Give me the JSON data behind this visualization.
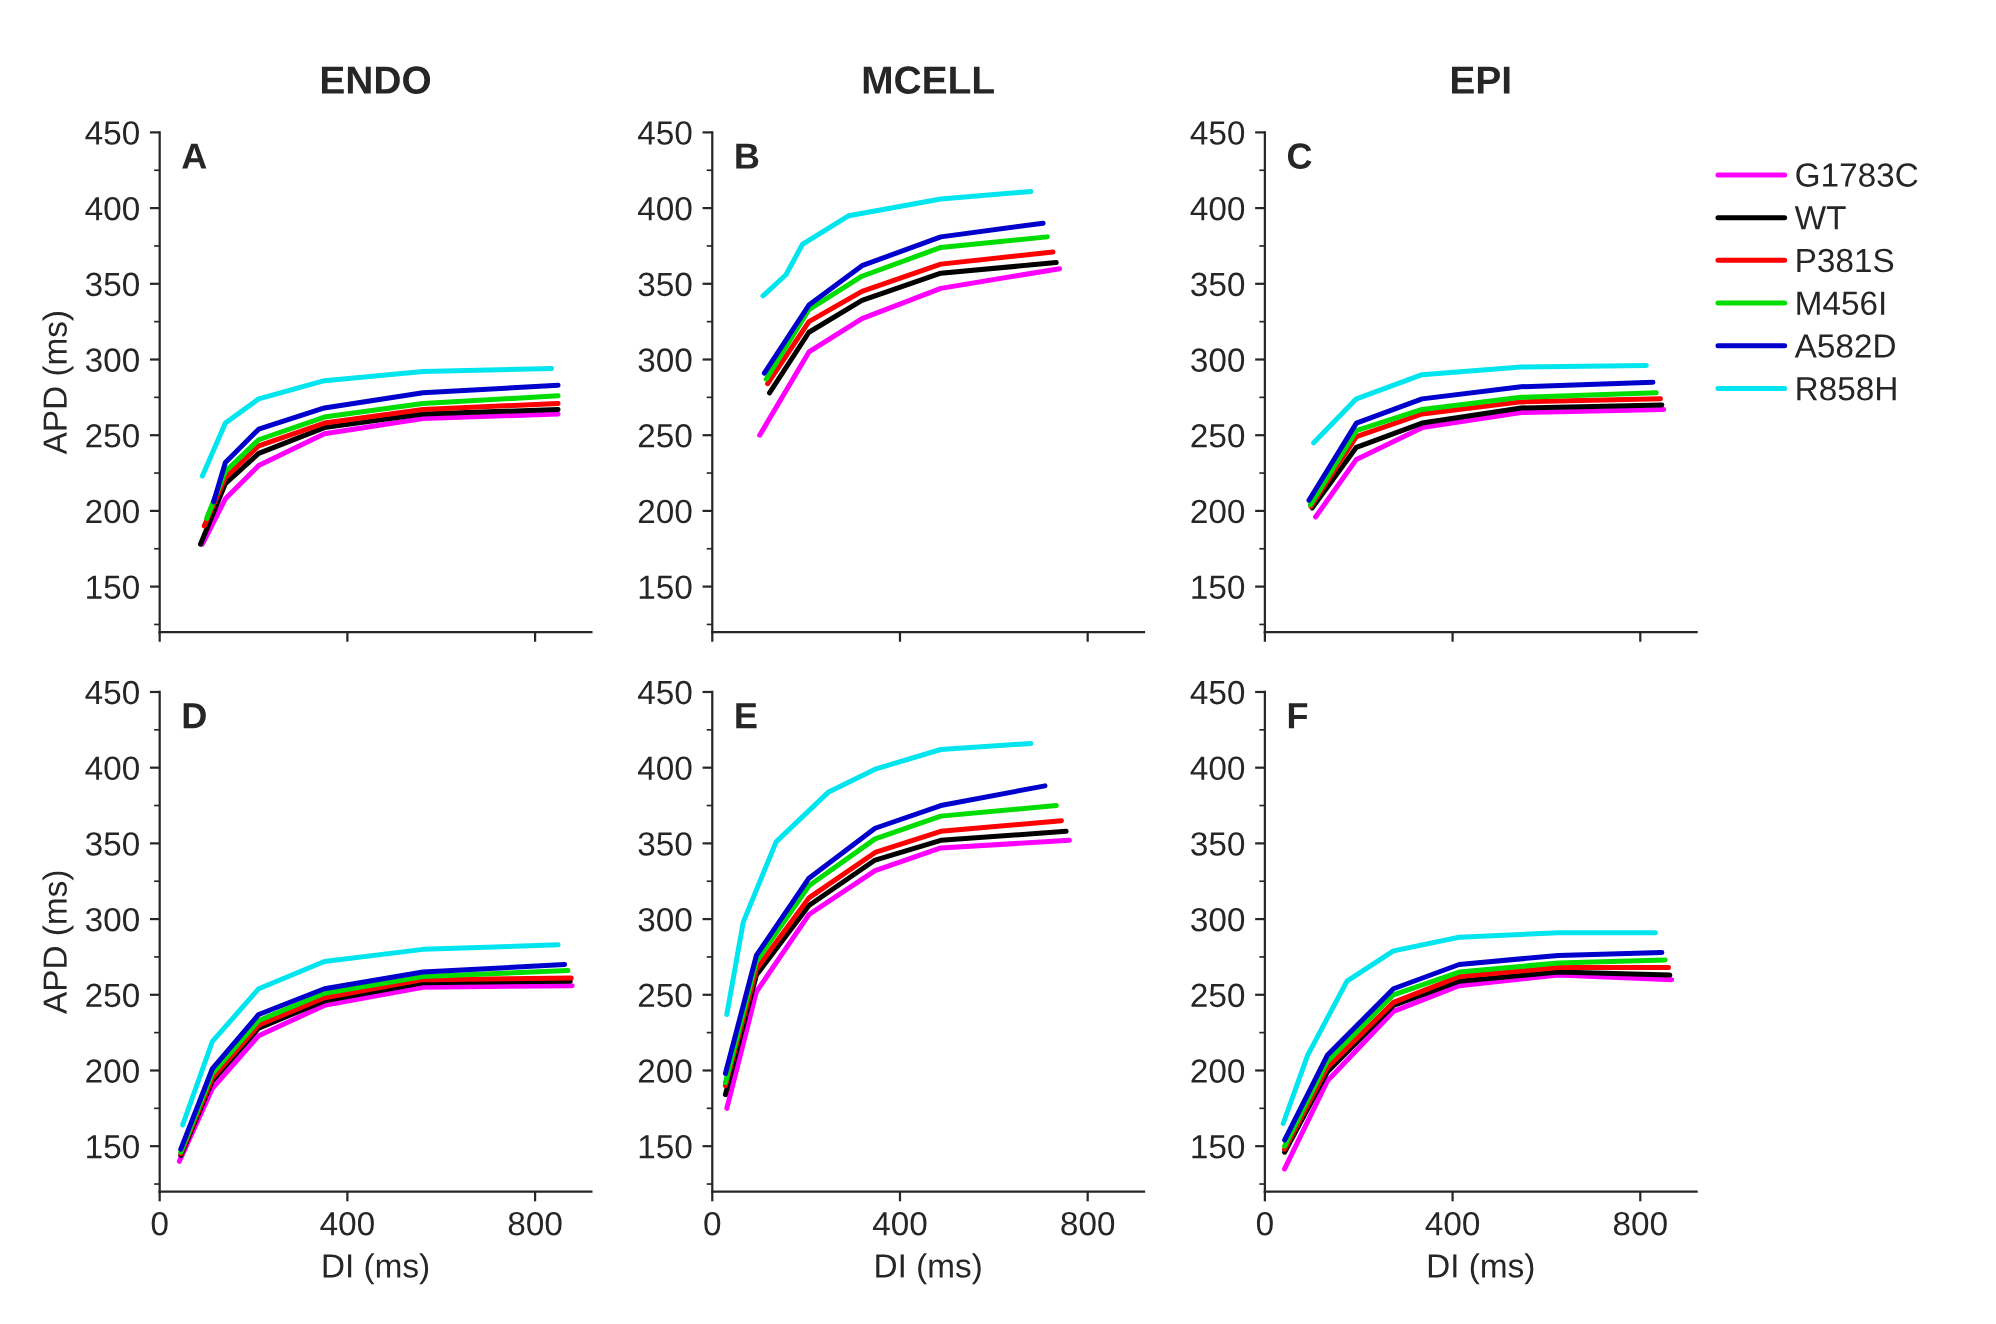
{
  "chart_data": [
    {
      "type": "line",
      "title": "ENDO",
      "annotations": [
        "A"
      ],
      "ylabel": "APD (ms)",
      "xlim": [
        0,
        920
      ],
      "xticks": [
        0,
        400,
        800
      ],
      "ylim": [
        120,
        450
      ],
      "yticks": [
        150,
        200,
        250,
        300,
        350,
        400,
        450
      ],
      "tick_labels": "y",
      "grid": false,
      "legend": false,
      "series": [
        {
          "color": "#ff00ff",
          "x": [
            91,
            140,
            211,
            351,
            561,
            849
          ],
          "values": [
            178,
            208,
            230,
            251,
            261,
            264
          ]
        },
        {
          "color": "#000000",
          "x": [
            87,
            140,
            211,
            351,
            561,
            849
          ],
          "values": [
            178,
            218,
            238,
            255,
            264,
            267
          ]
        },
        {
          "color": "#ff0000",
          "x": [
            95,
            140,
            211,
            351,
            561,
            849
          ],
          "values": [
            190,
            222,
            243,
            258,
            267,
            271
          ]
        },
        {
          "color": "#00dd00",
          "x": [
            100,
            140,
            211,
            351,
            561,
            849
          ],
          "values": [
            195,
            226,
            247,
            262,
            271,
            276
          ]
        },
        {
          "color": "#0000cc",
          "x": [
            115,
            140,
            211,
            351,
            561,
            849
          ],
          "values": [
            206,
            232,
            254,
            268,
            278,
            283
          ]
        },
        {
          "color": "#00e5ee",
          "x": [
            91,
            140,
            211,
            351,
            561,
            835
          ],
          "values": [
            223,
            258,
            274,
            286,
            292,
            294
          ]
        }
      ]
    },
    {
      "type": "line",
      "title": "MCELL",
      "annotations": [
        "B"
      ],
      "xlim": [
        0,
        920
      ],
      "xticks": [
        0,
        400,
        800
      ],
      "ylim": [
        120,
        450
      ],
      "yticks": [
        150,
        200,
        250,
        300,
        350,
        400,
        450
      ],
      "tick_labels": "y",
      "grid": false,
      "legend": false,
      "series": [
        {
          "color": "#ff00ff",
          "x": [
            101,
            206,
            319,
            487,
            740
          ],
          "values": [
            250,
            305,
            327,
            347,
            360
          ]
        },
        {
          "color": "#000000",
          "x": [
            122,
            206,
            319,
            487,
            733
          ],
          "values": [
            278,
            318,
            339,
            357,
            364
          ]
        },
        {
          "color": "#ff0000",
          "x": [
            118,
            206,
            319,
            487,
            726
          ],
          "values": [
            284,
            325,
            345,
            363,
            371
          ]
        },
        {
          "color": "#00dd00",
          "x": [
            115,
            206,
            319,
            487,
            714
          ],
          "values": [
            287,
            333,
            355,
            374,
            381
          ]
        },
        {
          "color": "#0000cc",
          "x": [
            111,
            206,
            319,
            487,
            705
          ],
          "values": [
            291,
            336,
            362,
            381,
            390
          ]
        },
        {
          "color": "#00e5ee",
          "x": [
            108,
            157,
            192,
            291,
            487,
            679
          ],
          "values": [
            342,
            356,
            376,
            395,
            406,
            411
          ]
        }
      ]
    },
    {
      "type": "line",
      "title": "EPI",
      "annotations": [
        "C"
      ],
      "xlim": [
        0,
        920
      ],
      "xticks": [
        0,
        400,
        800
      ],
      "ylim": [
        120,
        450
      ],
      "yticks": [
        150,
        200,
        250,
        300,
        350,
        400,
        450
      ],
      "tick_labels": "y",
      "grid": false,
      "legend": "right",
      "series": [
        {
          "name": "G1783C",
          "color": "#ff00ff",
          "x": [
            108,
            195,
            335,
            546,
            850
          ],
          "values": [
            196,
            234,
            255,
            265,
            267
          ]
        },
        {
          "name": "WT",
          "color": "#000000",
          "x": [
            101,
            195,
            335,
            546,
            846
          ],
          "values": [
            202,
            242,
            258,
            268,
            270
          ]
        },
        {
          "name": "P381S",
          "color": "#ff0000",
          "x": [
            98,
            195,
            335,
            546,
            843
          ],
          "values": [
            203,
            249,
            264,
            272,
            274
          ]
        },
        {
          "name": "M456I",
          "color": "#00dd00",
          "x": [
            97,
            195,
            335,
            546,
            834
          ],
          "values": [
            204,
            253,
            267,
            275,
            278
          ]
        },
        {
          "name": "A582D",
          "color": "#0000cc",
          "x": [
            94,
            195,
            335,
            546,
            827
          ],
          "values": [
            207,
            258,
            274,
            282,
            285
          ]
        },
        {
          "name": "R858H",
          "color": "#00e5ee",
          "x": [
            104,
            195,
            335,
            546,
            813
          ],
          "values": [
            245,
            274,
            290,
            295,
            296
          ]
        }
      ]
    },
    {
      "type": "line",
      "annotations": [
        "D"
      ],
      "xlabel": "DI (ms)",
      "ylabel": "APD (ms)",
      "xlim": [
        0,
        920
      ],
      "xticks": [
        0,
        400,
        800
      ],
      "ylim": [
        120,
        450
      ],
      "yticks": [
        150,
        200,
        250,
        300,
        350,
        400,
        450
      ],
      "grid": false,
      "legend": false,
      "series": [
        {
          "color": "#ff00ff",
          "x": [
            42,
            112,
            211,
            351,
            561,
            879
          ],
          "values": [
            140,
            188,
            223,
            243,
            255,
            256
          ]
        },
        {
          "color": "#000000",
          "x": [
            45,
            112,
            211,
            351,
            561,
            875
          ],
          "values": [
            144,
            193,
            228,
            246,
            258,
            259
          ]
        },
        {
          "color": "#ff0000",
          "x": [
            45,
            112,
            211,
            351,
            561,
            877
          ],
          "values": [
            145,
            195,
            230,
            248,
            260,
            261
          ]
        },
        {
          "color": "#00dd00",
          "x": [
            45,
            112,
            211,
            351,
            561,
            870
          ],
          "values": [
            146,
            198,
            233,
            251,
            262,
            266
          ]
        },
        {
          "color": "#0000cc",
          "x": [
            45,
            112,
            211,
            351,
            561,
            863
          ],
          "values": [
            148,
            201,
            237,
            254,
            265,
            270
          ]
        },
        {
          "color": "#00e5ee",
          "x": [
            49,
            112,
            211,
            351,
            561,
            849
          ],
          "values": [
            164,
            219,
            254,
            272,
            280,
            283
          ]
        }
      ]
    },
    {
      "type": "line",
      "annotations": [
        "E"
      ],
      "xlabel": "DI (ms)",
      "xlim": [
        0,
        920
      ],
      "xticks": [
        0,
        400,
        800
      ],
      "ylim": [
        120,
        450
      ],
      "yticks": [
        150,
        200,
        250,
        300,
        350,
        400,
        450
      ],
      "grid": false,
      "legend": false,
      "series": [
        {
          "color": "#ff00ff",
          "x": [
            31,
            94,
            206,
            347,
            487,
            761
          ],
          "values": [
            175,
            252,
            303,
            332,
            347,
            352
          ]
        },
        {
          "color": "#000000",
          "x": [
            28,
            94,
            206,
            347,
            487,
            754
          ],
          "values": [
            184,
            263,
            309,
            339,
            352,
            358
          ]
        },
        {
          "color": "#ff0000",
          "x": [
            28,
            94,
            206,
            347,
            487,
            744
          ],
          "values": [
            190,
            267,
            314,
            344,
            358,
            365
          ]
        },
        {
          "color": "#00dd00",
          "x": [
            28,
            94,
            206,
            347,
            487,
            733
          ],
          "values": [
            192,
            272,
            322,
            353,
            368,
            375
          ]
        },
        {
          "color": "#0000cc",
          "x": [
            28,
            94,
            206,
            347,
            487,
            709
          ],
          "values": [
            198,
            276,
            327,
            360,
            375,
            388
          ]
        },
        {
          "color": "#00e5ee",
          "x": [
            31,
            66,
            136,
            248,
            347,
            487,
            679
          ],
          "values": [
            237,
            298,
            351,
            384,
            399,
            412,
            416
          ]
        }
      ]
    },
    {
      "type": "line",
      "annotations": [
        "F"
      ],
      "xlabel": "DI (ms)",
      "xlim": [
        0,
        920
      ],
      "xticks": [
        0,
        400,
        800
      ],
      "ylim": [
        120,
        450
      ],
      "yticks": [
        150,
        200,
        250,
        300,
        350,
        400,
        450
      ],
      "grid": false,
      "legend": false,
      "series": [
        {
          "color": "#ff00ff",
          "x": [
            42,
            133,
            274,
            414,
            625,
            867
          ],
          "values": [
            135,
            193,
            239,
            256,
            263,
            260
          ]
        },
        {
          "color": "#000000",
          "x": [
            42,
            133,
            274,
            414,
            625,
            863
          ],
          "values": [
            146,
            199,
            243,
            259,
            265,
            263
          ]
        },
        {
          "color": "#ff0000",
          "x": [
            42,
            133,
            274,
            414,
            625,
            860
          ],
          "values": [
            148,
            202,
            245,
            262,
            268,
            268
          ]
        },
        {
          "color": "#00dd00",
          "x": [
            42,
            133,
            274,
            414,
            625,
            853
          ],
          "values": [
            150,
            206,
            250,
            265,
            271,
            273
          ]
        },
        {
          "color": "#0000cc",
          "x": [
            42,
            133,
            274,
            414,
            625,
            846
          ],
          "values": [
            154,
            210,
            254,
            270,
            276,
            278
          ]
        },
        {
          "color": "#00e5ee",
          "x": [
            39,
            91,
            175,
            274,
            414,
            625,
            832
          ],
          "values": [
            165,
            210,
            259,
            279,
            288,
            291,
            291
          ]
        }
      ]
    }
  ]
}
